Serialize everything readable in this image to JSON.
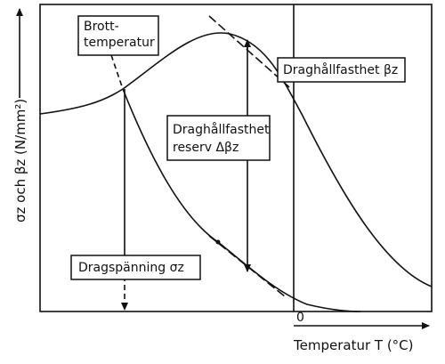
{
  "y_axis_label": "σz och βz (N/mm²)",
  "x_axis_label": "Temperatur T (°C)",
  "zero_label": "0",
  "labels": {
    "break_temperature": [
      "Brott-",
      "temperatur"
    ],
    "tensile_strength": "Draghållfasthet βz",
    "strength_reserve": [
      "Draghållfasthet",
      "reserv Δβz"
    ],
    "tensile_stress": "Dragspänning σz"
  }
}
